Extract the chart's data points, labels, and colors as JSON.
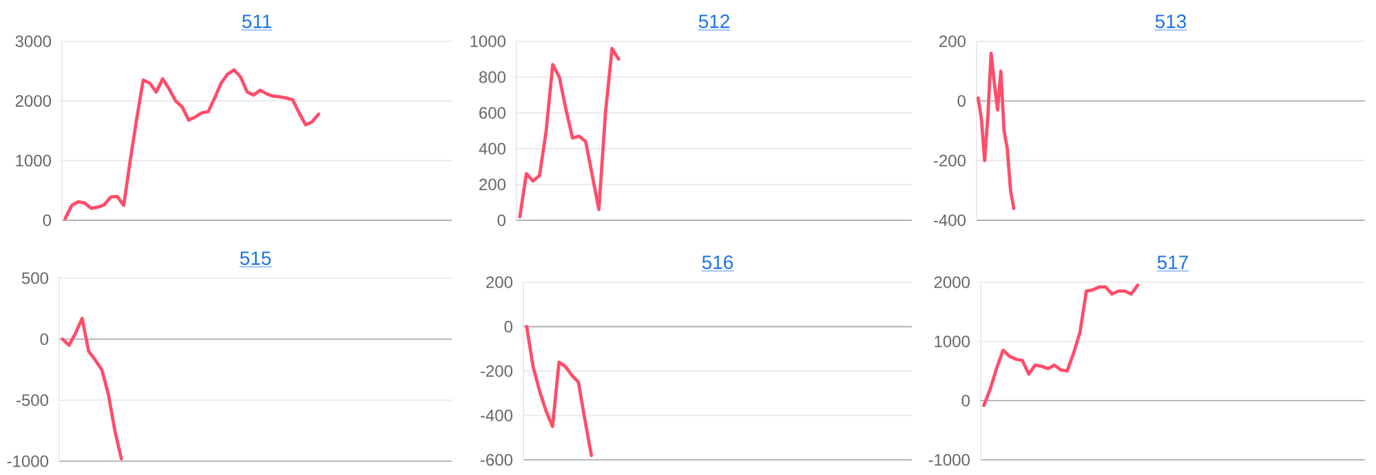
{
  "chart_data": [
    {
      "type": "line",
      "title": "511",
      "categories": [
        null,
        null,
        null,
        null,
        null,
        null,
        null,
        null,
        null,
        null,
        null,
        null,
        null,
        null,
        null,
        null,
        null,
        null,
        null,
        null,
        null,
        null,
        null,
        null,
        null,
        null,
        null,
        null,
        null,
        null,
        null,
        null,
        null,
        null,
        null,
        null,
        null,
        null,
        null,
        null,
        null,
        null,
        null,
        null,
        null,
        null,
        null,
        null,
        null,
        null,
        null,
        null,
        null,
        null,
        null,
        null,
        null,
        null,
        null,
        null
      ],
      "values": [
        30,
        250,
        310,
        290,
        200,
        220,
        260,
        390,
        400,
        250,
        1000,
        1700,
        2350,
        2300,
        2150,
        2370,
        2200,
        2000,
        1900,
        1680,
        1730,
        1800,
        1820,
        2050,
        2300,
        2450,
        2520,
        2400,
        2150,
        2100,
        2180,
        2120,
        2080,
        2070,
        2050,
        2020,
        1800,
        1600,
        1650,
        1780,
        null,
        null,
        null,
        null,
        null,
        null,
        null,
        null,
        null,
        null,
        null,
        null,
        null,
        null,
        null,
        null,
        null,
        null,
        null,
        null
      ],
      "color": "#ff4d6a",
      "ylim": [
        0,
        3000
      ],
      "yticks": [
        0,
        1000,
        2000,
        3000
      ],
      "grid": "y",
      "tick_labels": "y"
    },
    {
      "type": "line",
      "title": "512",
      "categories": [
        null,
        null,
        null,
        null,
        null,
        null,
        null,
        null,
        null,
        null,
        null,
        null,
        null,
        null,
        null,
        null,
        null,
        null,
        null,
        null,
        null,
        null,
        null,
        null,
        null,
        null,
        null,
        null,
        null,
        null,
        null,
        null,
        null,
        null,
        null,
        null,
        null,
        null,
        null,
        null,
        null,
        null,
        null,
        null,
        null,
        null,
        null,
        null,
        null,
        null,
        null,
        null,
        null,
        null,
        null,
        null,
        null,
        null,
        null,
        null
      ],
      "values": [
        20,
        260,
        220,
        250,
        500,
        870,
        800,
        620,
        460,
        470,
        440,
        250,
        60,
        600,
        960,
        900,
        null,
        null,
        null,
        null,
        null,
        null,
        null,
        null,
        null,
        null,
        null,
        null,
        null,
        null,
        null,
        null,
        null,
        null,
        null,
        null,
        null,
        null,
        null,
        null,
        null,
        null,
        null,
        null,
        null,
        null,
        null,
        null,
        null,
        null,
        null,
        null,
        null,
        null,
        null,
        null,
        null,
        null,
        null,
        null
      ],
      "color": "#ff4d6a",
      "ylim": [
        0,
        1000
      ],
      "yticks": [
        0,
        200,
        400,
        600,
        800,
        1000
      ],
      "grid": "y",
      "tick_labels": "y"
    },
    {
      "type": "line",
      "title": "513",
      "categories": [
        null,
        null,
        null,
        null,
        null,
        null,
        null,
        null,
        null,
        null,
        null,
        null,
        null,
        null,
        null,
        null,
        null,
        null,
        null,
        null,
        null,
        null,
        null,
        null,
        null,
        null,
        null,
        null,
        null,
        null,
        null,
        null,
        null,
        null,
        null,
        null,
        null,
        null,
        null,
        null,
        null,
        null,
        null,
        null,
        null,
        null,
        null,
        null,
        null,
        null,
        null,
        null,
        null,
        null,
        null,
        null,
        null,
        null,
        null,
        null,
        null,
        null,
        null,
        null,
        null,
        null,
        null,
        null,
        null,
        null,
        null,
        null,
        null,
        null,
        null,
        null,
        null,
        null,
        null,
        null,
        null,
        null,
        null,
        null,
        null,
        null,
        null,
        null,
        null,
        null,
        null,
        null,
        null,
        null,
        null,
        null,
        null,
        null,
        null,
        null,
        null,
        null,
        null,
        null,
        null,
        null,
        null,
        null,
        null,
        null,
        null,
        null,
        null,
        null,
        null,
        null,
        null,
        null,
        null,
        null
      ],
      "values": [
        10,
        -60,
        -200,
        -50,
        160,
        60,
        -30,
        100,
        -100,
        -160,
        -300,
        -360,
        null,
        null,
        null,
        null,
        null,
        null,
        null,
        null,
        null,
        null,
        null,
        null,
        null,
        null,
        null,
        null,
        null,
        null,
        null,
        null,
        null,
        null,
        null,
        null,
        null,
        null,
        null,
        null,
        null,
        null,
        null,
        null,
        null,
        null,
        null,
        null,
        null,
        null,
        null,
        null,
        null,
        null,
        null,
        null,
        null,
        null,
        null,
        null,
        null,
        null,
        null,
        null,
        null,
        null,
        null,
        null,
        null,
        null,
        null,
        null,
        null,
        null,
        null,
        null,
        null,
        null,
        null,
        null,
        null,
        null,
        null,
        null,
        null,
        null,
        null,
        null,
        null,
        null,
        null,
        null,
        null,
        null,
        null,
        null,
        null,
        null,
        null,
        null,
        null,
        null,
        null,
        null,
        null,
        null,
        null,
        null,
        null,
        null,
        null,
        null,
        null,
        null,
        null,
        null,
        null,
        null,
        null,
        null
      ],
      "color": "#ff4d6a",
      "ylim": [
        -400,
        200
      ],
      "yticks": [
        -400,
        -200,
        0,
        200
      ],
      "grid": "y",
      "tick_labels": "y",
      "ref_lines": [
        {
          "axis": "y",
          "value": 0,
          "color": "#b0b0b0"
        }
      ]
    },
    {
      "type": "line",
      "title": "515",
      "categories": [
        null,
        null,
        null,
        null,
        null,
        null,
        null,
        null,
        null,
        null,
        null,
        null,
        null,
        null,
        null,
        null,
        null,
        null,
        null,
        null,
        null,
        null,
        null,
        null,
        null,
        null,
        null,
        null,
        null,
        null,
        null,
        null,
        null,
        null,
        null,
        null,
        null,
        null,
        null,
        null,
        null,
        null,
        null,
        null,
        null,
        null,
        null,
        null,
        null,
        null,
        null,
        null,
        null,
        null,
        null,
        null,
        null,
        null,
        null,
        null
      ],
      "values": [
        0,
        -50,
        50,
        170,
        -100,
        -170,
        -250,
        -450,
        -750,
        -980,
        null,
        null,
        null,
        null,
        null,
        null,
        null,
        null,
        null,
        null,
        null,
        null,
        null,
        null,
        null,
        null,
        null,
        null,
        null,
        null,
        null,
        null,
        null,
        null,
        null,
        null,
        null,
        null,
        null,
        null,
        null,
        null,
        null,
        null,
        null,
        null,
        null,
        null,
        null,
        null,
        null,
        null,
        null,
        null,
        null,
        null,
        null,
        null,
        null,
        null
      ],
      "color": "#ff4d6a",
      "ylim": [
        -1000,
        500
      ],
      "yticks": [
        -1000,
        -500,
        0,
        500
      ],
      "grid": "y",
      "tick_labels": "y",
      "ref_lines": [
        {
          "axis": "y",
          "value": 0,
          "color": "#b0b0b0"
        }
      ]
    },
    {
      "type": "line",
      "title": "516",
      "categories": [
        null,
        null,
        null,
        null,
        null,
        null,
        null,
        null,
        null,
        null,
        null,
        null,
        null,
        null,
        null,
        null,
        null,
        null,
        null,
        null,
        null,
        null,
        null,
        null,
        null,
        null,
        null,
        null,
        null,
        null,
        null,
        null,
        null,
        null,
        null,
        null,
        null,
        null,
        null,
        null,
        null,
        null,
        null,
        null,
        null,
        null,
        null,
        null,
        null,
        null,
        null,
        null,
        null,
        null,
        null,
        null,
        null,
        null,
        null,
        null
      ],
      "values": [
        0,
        -180,
        -290,
        -380,
        -450,
        -160,
        -180,
        -220,
        -250,
        -420,
        -580,
        null,
        null,
        null,
        null,
        null,
        null,
        null,
        null,
        null,
        null,
        null,
        null,
        null,
        null,
        null,
        null,
        null,
        null,
        null,
        null,
        null,
        null,
        null,
        null,
        null,
        null,
        null,
        null,
        null,
        null,
        null,
        null,
        null,
        null,
        null,
        null,
        null,
        null,
        null,
        null,
        null,
        null,
        null,
        null,
        null,
        null,
        null,
        null,
        null
      ],
      "color": "#ff4d6a",
      "ylim": [
        -600,
        200
      ],
      "yticks": [
        -600,
        -400,
        -200,
        0,
        200
      ],
      "grid": "y",
      "tick_labels": "y",
      "ref_lines": [
        {
          "axis": "y",
          "value": 0,
          "color": "#b0b0b0"
        }
      ]
    },
    {
      "type": "line",
      "title": "517",
      "categories": [
        null,
        null,
        null,
        null,
        null,
        null,
        null,
        null,
        null,
        null,
        null,
        null,
        null,
        null,
        null,
        null,
        null,
        null,
        null,
        null,
        null,
        null,
        null,
        null,
        null,
        null,
        null,
        null,
        null,
        null,
        null,
        null,
        null,
        null,
        null,
        null,
        null,
        null,
        null,
        null,
        null,
        null,
        null,
        null,
        null,
        null,
        null,
        null,
        null,
        null,
        null,
        null,
        null,
        null,
        null,
        null,
        null,
        null,
        null,
        null
      ],
      "values": [
        -80,
        200,
        550,
        850,
        750,
        700,
        680,
        450,
        600,
        580,
        540,
        600,
        520,
        500,
        800,
        1150,
        1850,
        1870,
        1920,
        1920,
        1800,
        1850,
        1850,
        1800,
        1950,
        null,
        null,
        null,
        null,
        null,
        null,
        null,
        null,
        null,
        null,
        null,
        null,
        null,
        null,
        null,
        null,
        null,
        null,
        null,
        null,
        null,
        null,
        null,
        null,
        null,
        null,
        null,
        null,
        null,
        null,
        null,
        null,
        null,
        null,
        null
      ],
      "color": "#ff4d6a",
      "ylim": [
        -1000,
        2000
      ],
      "yticks": [
        -1000,
        0,
        1000,
        2000
      ],
      "grid": "y",
      "tick_labels": "y",
      "ref_lines": [
        {
          "axis": "y",
          "value": 0,
          "color": "#b0b0b0"
        }
      ]
    }
  ]
}
